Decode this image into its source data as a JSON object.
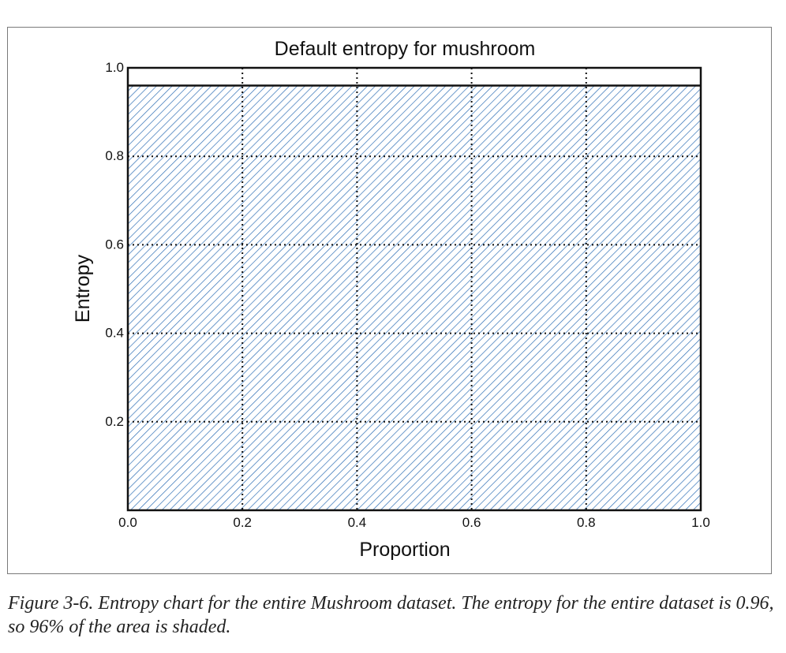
{
  "chart_data": {
    "type": "area",
    "title": "Default entropy for mushroom",
    "xlabel": "Proportion",
    "ylabel": "Entropy",
    "xlim": [
      0.0,
      1.0
    ],
    "ylim": [
      0.0,
      1.0
    ],
    "x_ticks": [
      "0.0",
      "0.2",
      "0.4",
      "0.6",
      "0.8",
      "1.0"
    ],
    "y_ticks": [
      "0.2",
      "0.4",
      "0.6",
      "0.8",
      "1.0"
    ],
    "grid": true,
    "series": [
      {
        "x": [
          0.0,
          1.0
        ],
        "entropy": 0.96,
        "fill": "hatched",
        "color": "#2f6fb5"
      }
    ]
  },
  "caption": "Figure 3-6. Entropy chart for the entire Mushroom dataset. The entropy for the entire dataset is 0.96, so 96% of the area is shaded."
}
